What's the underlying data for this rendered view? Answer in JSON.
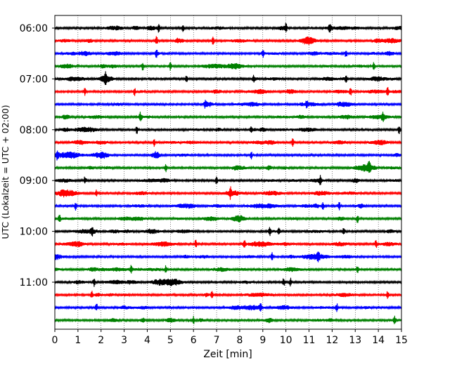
{
  "chart_data": {
    "type": "line",
    "subtype": "seismic-helicorder",
    "xlabel": "Zeit  [min]",
    "ylabel": "UTC (Lokalzeit = UTC + 02:00)",
    "xlim": [
      0,
      15
    ],
    "x_ticks": [
      "0",
      "1",
      "2",
      "3",
      "4",
      "5",
      "6",
      "7",
      "8",
      "9",
      "10",
      "11",
      "12",
      "13",
      "14",
      "15"
    ],
    "y_ticks": [
      {
        "label": "06:00",
        "trace": 0
      },
      {
        "label": "07:00",
        "trace": 4
      },
      {
        "label": "08:00",
        "trace": 8
      },
      {
        "label": "09:00",
        "trace": 12
      },
      {
        "label": "10:00",
        "trace": 16
      },
      {
        "label": "11:00",
        "trace": 20
      }
    ],
    "trace_interval_min": 15,
    "trace_count": 24,
    "start_time": "06:00",
    "grid": "vertical dotted at each minute",
    "trace_colors": [
      "#000000",
      "#ff0000",
      "#0000ff",
      "#008000"
    ],
    "events": [
      [
        4.5,
        5.55,
        10.0,
        11.9
      ],
      [
        4.4,
        6.85
      ],
      [
        4.4,
        9.0,
        12.6
      ],
      [
        3.8,
        5.0,
        13.8
      ],
      [
        2.2,
        5.7,
        8.6,
        12.6
      ],
      [
        1.3,
        3.45,
        12.8,
        14.4
      ],
      [
        6.5,
        10.9
      ],
      [
        3.7,
        14.2
      ],
      [
        3.55,
        8.5,
        14.9
      ],
      [
        4.3,
        10.3
      ],
      [
        0.1,
        8.5
      ],
      [
        4.8,
        13.6
      ],
      [
        1.3,
        7.0,
        11.5
      ],
      [
        1.8,
        7.6
      ],
      [
        0.9,
        11.6,
        12.3
      ],
      [
        0.2,
        13.1
      ],
      [
        1.6,
        9.3,
        9.7,
        12.5
      ],
      [
        6.1,
        8.2,
        13.9
      ],
      [
        9.4,
        11.4
      ],
      [
        3.3,
        4.8,
        13.1
      ],
      [
        1.7,
        9.9,
        10.2
      ],
      [
        1.6,
        6.8,
        14.4
      ],
      [
        1.8,
        8.9,
        12.2
      ],
      [
        6.0,
        14.7
      ]
    ]
  }
}
